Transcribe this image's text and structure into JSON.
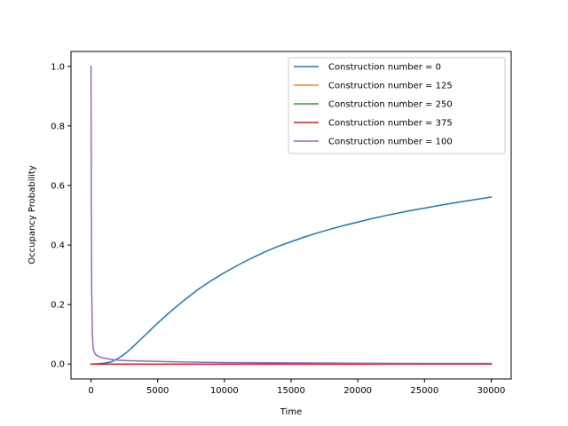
{
  "chart_data": {
    "type": "line",
    "title": "",
    "xlabel": "Time",
    "ylabel": "Occupancy Probability",
    "xlim": [
      -1500,
      31500
    ],
    "ylim": [
      -0.05,
      1.05
    ],
    "xticks": [
      0,
      5000,
      10000,
      15000,
      20000,
      25000,
      30000
    ],
    "yticks": [
      0.0,
      0.2,
      0.4,
      0.6,
      0.8,
      1.0
    ],
    "xtick_labels": [
      "0",
      "5000",
      "10000",
      "15000",
      "20000",
      "25000",
      "30000"
    ],
    "ytick_labels": [
      "0.0",
      "0.2",
      "0.4",
      "0.6",
      "0.8",
      "1.0"
    ],
    "grid": false,
    "legend_position": "top-right",
    "series": [
      {
        "name": "Construction number = 0",
        "color": "#1f77b4",
        "x": [
          0,
          500,
          1000,
          1500,
          2000,
          2500,
          3000,
          4000,
          5000,
          6000,
          7000,
          8000,
          9000,
          10000,
          11000,
          12000,
          13000,
          14000,
          15000,
          16000,
          17000,
          18000,
          19000,
          20000,
          21000,
          22000,
          23000,
          24000,
          25000,
          26000,
          27000,
          28000,
          29000,
          30000
        ],
        "y": [
          0.0,
          0.001,
          0.003,
          0.007,
          0.018,
          0.033,
          0.052,
          0.095,
          0.138,
          0.178,
          0.215,
          0.25,
          0.28,
          0.307,
          0.332,
          0.355,
          0.376,
          0.395,
          0.411,
          0.427,
          0.441,
          0.454,
          0.466,
          0.477,
          0.488,
          0.498,
          0.507,
          0.516,
          0.524,
          0.532,
          0.54,
          0.547,
          0.554,
          0.561
        ]
      },
      {
        "name": "Construction number = 125",
        "color": "#ff7f0e",
        "x": [
          0,
          1000,
          5000,
          10000,
          15000,
          20000,
          25000,
          30000
        ],
        "y": [
          0.0,
          0.0,
          0.0,
          0.0,
          0.0,
          0.0,
          0.0,
          0.0
        ]
      },
      {
        "name": "Construction number = 250",
        "color": "#2ca02c",
        "x": [
          0,
          1000,
          5000,
          10000,
          15000,
          20000,
          25000,
          30000
        ],
        "y": [
          0.0,
          0.0,
          0.0,
          0.0,
          0.0,
          0.0,
          0.0,
          0.0
        ]
      },
      {
        "name": "Construction number = 375",
        "color": "#d62728",
        "x": [
          0,
          1000,
          5000,
          10000,
          15000,
          20000,
          25000,
          30000
        ],
        "y": [
          0.0,
          0.0,
          0.0,
          0.0,
          0.0,
          0.0,
          0.0,
          0.0
        ]
      },
      {
        "name": "Construction number = 100",
        "color": "#9467bd",
        "x": [
          0,
          20,
          50,
          100,
          150,
          200,
          300,
          400,
          600,
          800,
          1000,
          1500,
          2000,
          3000,
          4000,
          5000,
          7000,
          10000,
          15000,
          20000,
          25000,
          30000
        ],
        "y": [
          1.0,
          0.55,
          0.25,
          0.1,
          0.06,
          0.045,
          0.035,
          0.03,
          0.025,
          0.022,
          0.02,
          0.016,
          0.013,
          0.011,
          0.01,
          0.009,
          0.007,
          0.005,
          0.004,
          0.003,
          0.002,
          0.002
        ]
      }
    ]
  }
}
